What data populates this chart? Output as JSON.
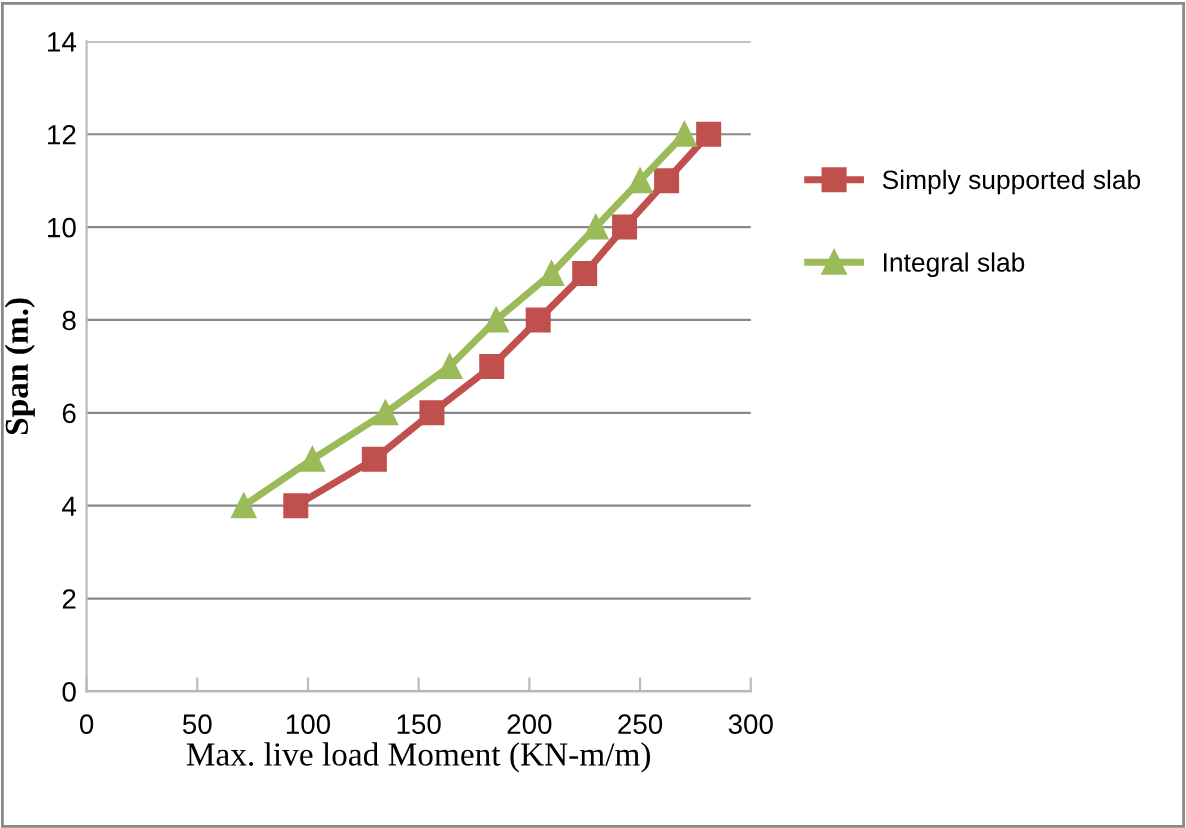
{
  "chart_data": {
    "type": "line",
    "xlabel": "Max. live load Moment (KN-m/m)",
    "ylabel": "Span (m.)",
    "xlim": [
      0,
      300
    ],
    "xticks": [
      0,
      50,
      100,
      150,
      200,
      250,
      300
    ],
    "ylim": [
      0,
      14
    ],
    "yticks": [
      0,
      2,
      4,
      6,
      8,
      10,
      12,
      14
    ],
    "grid": "y",
    "legend": "right",
    "line_style": "solid",
    "series": [
      {
        "name": "Simply supported slab",
        "color": "#c0504d",
        "marker": "square",
        "x": [
          94.5,
          130,
          156,
          183,
          204,
          225,
          243,
          262,
          281
        ],
        "values": [
          4,
          5,
          6,
          7,
          8,
          9,
          10,
          11,
          12
        ]
      },
      {
        "name": "Integral slab",
        "color": "#9bbb59",
        "marker": "triangle",
        "x": [
          71,
          102,
          135,
          164,
          185,
          210,
          230,
          250,
          270
        ],
        "values": [
          4,
          5,
          6,
          7,
          8,
          9,
          10,
          11,
          12
        ]
      }
    ]
  }
}
